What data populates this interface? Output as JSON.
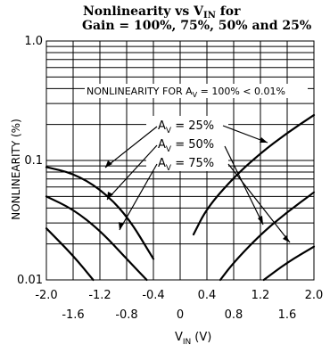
{
  "chart_data": {
    "type": "line",
    "title_line1": "Nonlinearity vs V",
    "title_line1_sub": "IN",
    "title_line1_end": " for",
    "title_line2": "Gain = 100%, 75%, 50% and 25%",
    "xlabel_main": "V",
    "xlabel_sub": "IN",
    "xlabel_unit": "(V)",
    "ylabel": "NONLINEARITY (%)",
    "yscale": "log",
    "xlim": [
      -2.0,
      2.0
    ],
    "ylim": [
      0.01,
      1.0
    ],
    "x_ticks_top_row": [
      "-2.0",
      "-1.2",
      "-0.4",
      "0.4",
      "1.2",
      "2.0"
    ],
    "x_ticks_top_values": [
      -2.0,
      -1.2,
      -0.4,
      0.4,
      1.2,
      2.0
    ],
    "x_ticks_bottom_row": [
      "-1.6",
      "-0.8",
      "0",
      "0.8",
      "1.6"
    ],
    "x_ticks_bottom_values": [
      -1.6,
      -0.8,
      0,
      0.8,
      1.6
    ],
    "y_ticks": [
      "1.0",
      "0.1",
      "0.01"
    ],
    "y_tick_values": [
      1.0,
      0.1,
      0.01
    ],
    "annotation_100": "NONLINEARITY FOR A",
    "annotation_100_sub": "V",
    "annotation_100_end": " = 100% < 0.01%",
    "series": [
      {
        "name": "A_V = 25%",
        "label": "A",
        "label_sub": "V",
        "label_end": " = 25%",
        "left": {
          "x": [
            -2.0,
            -1.6,
            -1.2,
            -0.8,
            -0.4
          ],
          "y": [
            0.088,
            0.078,
            0.058,
            0.035,
            0.015
          ]
        },
        "right": {
          "x": [
            0.2,
            0.4,
            0.8,
            1.2,
            1.6,
            2.0
          ],
          "y": [
            0.024,
            0.04,
            0.072,
            0.115,
            0.17,
            0.24
          ]
        }
      },
      {
        "name": "A_V = 50%",
        "label": "A",
        "label_sub": "V",
        "label_end": " = 50%",
        "left": {
          "x": [
            -2.0,
            -1.6,
            -1.2,
            -0.8,
            -0.5
          ],
          "y": [
            0.05,
            0.039,
            0.026,
            0.015,
            0.01
          ]
        },
        "right": {
          "x": [
            0.6,
            0.8,
            1.2,
            1.6,
            2.0
          ],
          "y": [
            0.01,
            0.014,
            0.024,
            0.037,
            0.054
          ]
        }
      },
      {
        "name": "A_V = 75%",
        "label": "A",
        "label_sub": "V",
        "label_end": " = 75%",
        "left": {
          "x": [
            -2.0,
            -1.6,
            -1.3
          ],
          "y": [
            0.027,
            0.016,
            0.01
          ]
        },
        "right": {
          "x": [
            1.25,
            1.6,
            2.0
          ],
          "y": [
            0.01,
            0.014,
            0.019
          ]
        }
      }
    ]
  }
}
